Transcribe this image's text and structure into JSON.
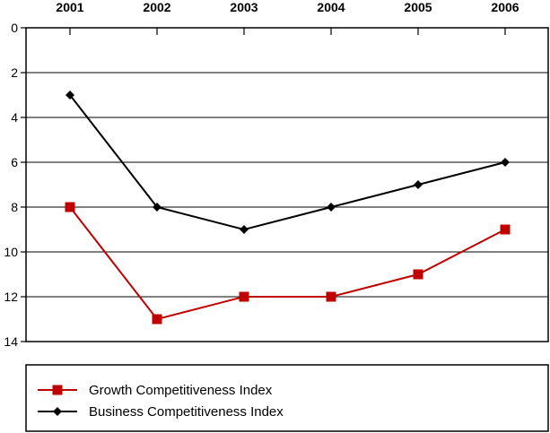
{
  "chart_data": {
    "type": "line",
    "title": "",
    "xlabel": "",
    "ylabel": "",
    "categories": [
      "2001",
      "2002",
      "2003",
      "2004",
      "2005",
      "2006"
    ],
    "y_ticks": [
      0,
      2,
      4,
      6,
      8,
      10,
      12,
      14
    ],
    "ylim": [
      0,
      14
    ],
    "y_inverted": true,
    "x_axis_position": "top",
    "grid": "horizontal",
    "legend_position": "bottom",
    "series": [
      {
        "name": "Growth Competitiveness Index",
        "values": [
          8,
          13,
          12,
          12,
          11,
          9
        ],
        "color": "#c00000",
        "marker": "square"
      },
      {
        "name": "Business Competitiveness Index",
        "values": [
          3,
          8,
          9,
          8,
          7,
          6
        ],
        "color": "#000000",
        "marker": "diamond"
      }
    ]
  }
}
